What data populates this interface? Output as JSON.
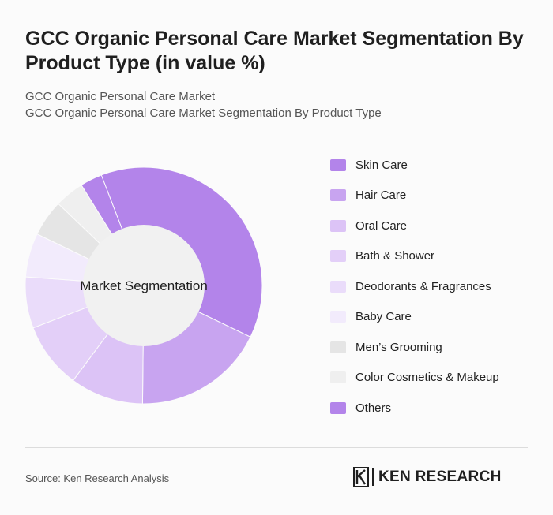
{
  "title": "GCC Organic Personal Care Market Segmentation By Product Type (in value %)",
  "subtitle_line1": "GCC Organic Personal Care Market",
  "subtitle_line2": "GCC Organic Personal Care Market Segmentation By Product Type",
  "source": "Source: Ken Research Analysis",
  "logo_text": "KEN RESEARCH",
  "colors": {
    "Skin Care": "#b384ea",
    "Hair Care": "#c8a4f0",
    "Oral Care": "#dcc3f6",
    "Bath & Shower": "#e3cff8",
    "Deodorants & Fragrances": "#eadcfa",
    "Baby Care": "#f2ebfc",
    "Men’s Grooming": "#e5e5e5",
    "Color Cosmetics & Makeup": "#efefef",
    "Others": "#b384ea",
    "center": "#f1f1f1"
  },
  "chart_data": {
    "type": "pie",
    "style": "donut",
    "center_label": "Market Segmentation",
    "legend_position": "right",
    "categories": [
      "Skin Care",
      "Hair Care",
      "Oral Care",
      "Bath & Shower",
      "Deodorants & Fragrances",
      "Baby Care",
      "Men’s Grooming",
      "Color Cosmetics & Makeup",
      "Others"
    ],
    "values": [
      38,
      18,
      10,
      9,
      7,
      6,
      5,
      4,
      3
    ]
  }
}
